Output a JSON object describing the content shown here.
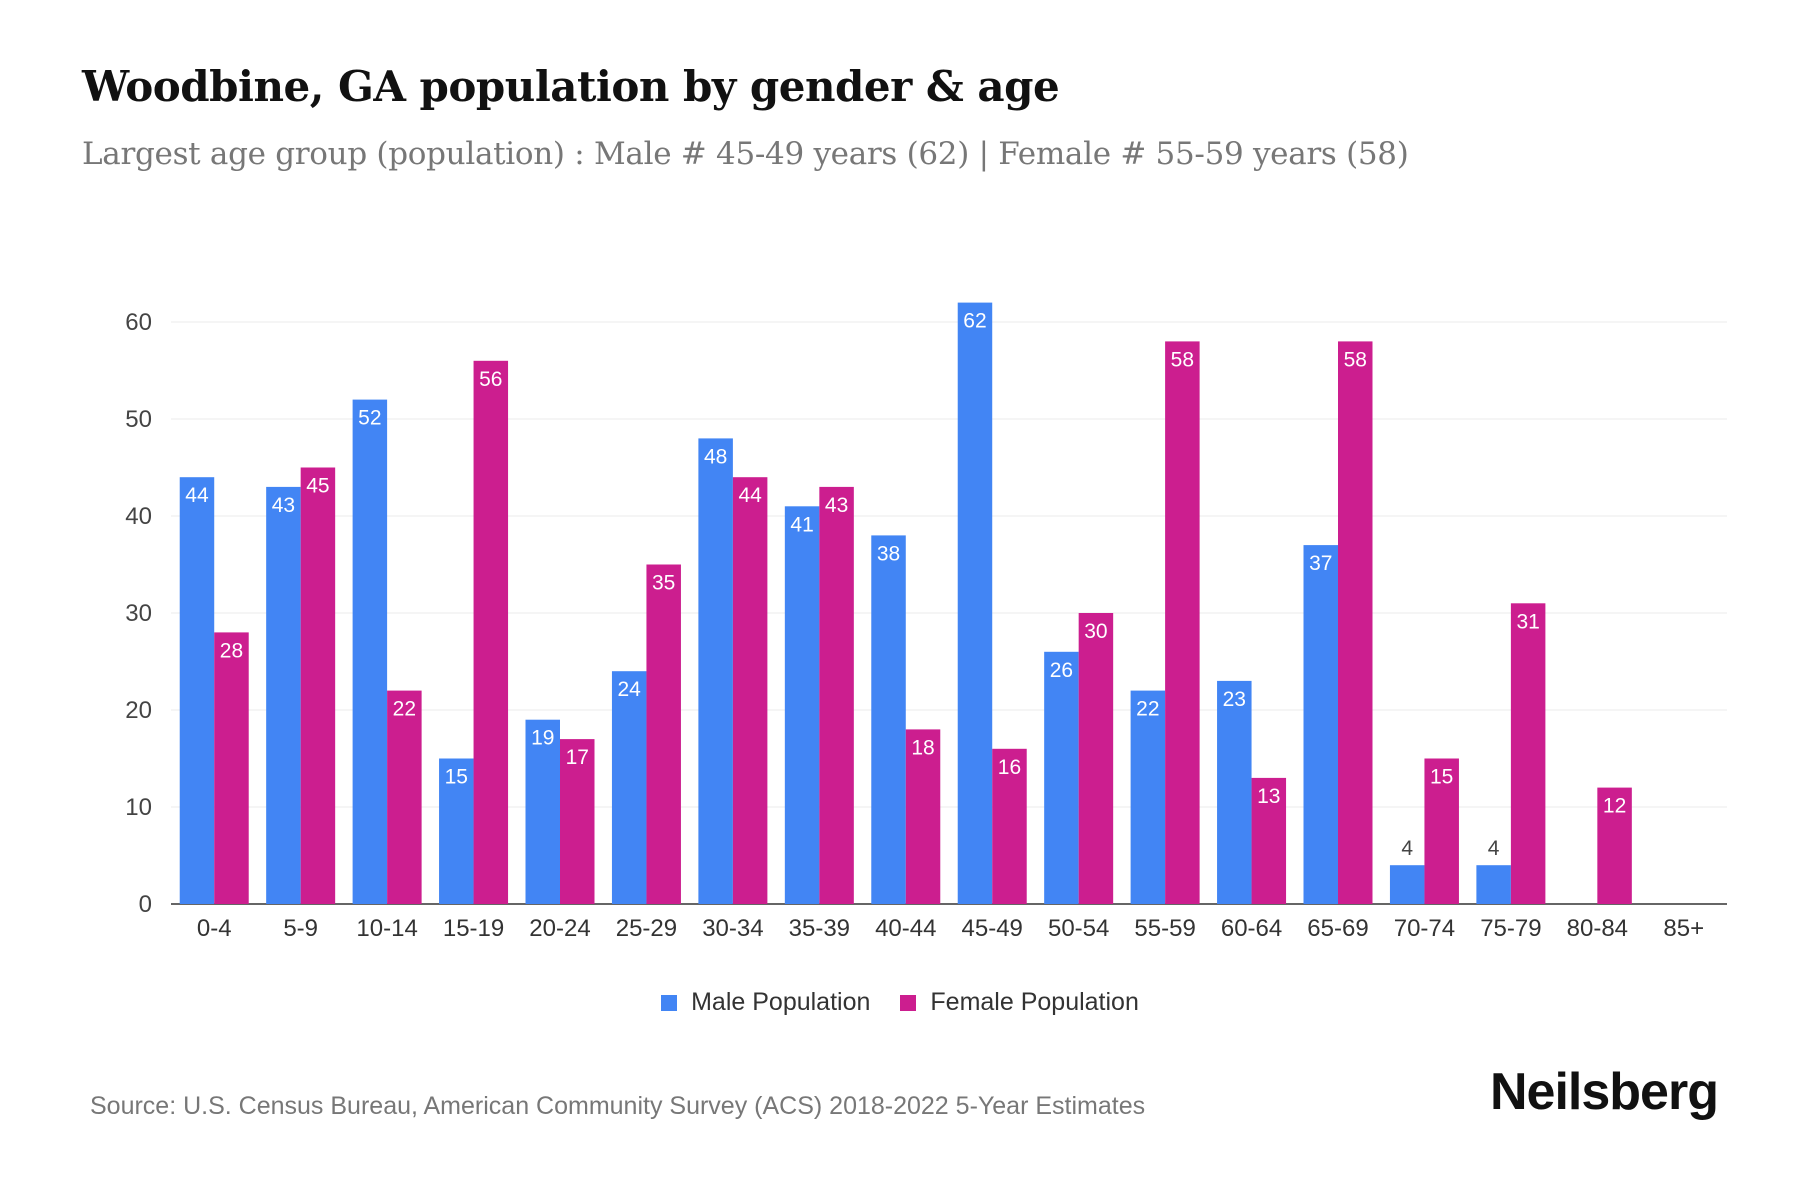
{
  "title": "Woodbine, GA population by gender & age",
  "subtitle": "Largest age group (population) : Male # 45-49 years (62) | Female # 55-59 years (58)",
  "source": "Source: U.S. Census Bureau, American Community Survey (ACS) 2018-2022 5-Year Estimates",
  "logo": "Neilsberg",
  "colors": {
    "male": "#4285F4",
    "female": "#CC1E8F"
  },
  "chart_data": {
    "type": "bar",
    "title": "Woodbine, GA population by gender & age",
    "xlabel": "",
    "ylabel": "",
    "ylim": [
      0,
      62
    ],
    "yticks": [
      0,
      10,
      20,
      30,
      40,
      50,
      60
    ],
    "grid": true,
    "legend_position": "bottom-center",
    "categories": [
      "0-4",
      "5-9",
      "10-14",
      "15-19",
      "20-24",
      "25-29",
      "30-34",
      "35-39",
      "40-44",
      "45-49",
      "50-54",
      "55-59",
      "60-64",
      "65-69",
      "70-74",
      "75-79",
      "80-84",
      "85+"
    ],
    "series": [
      {
        "name": "Male Population",
        "values": [
          44,
          43,
          52,
          15,
          19,
          24,
          48,
          41,
          38,
          62,
          26,
          22,
          23,
          37,
          4,
          4,
          0,
          0
        ]
      },
      {
        "name": "Female Population",
        "values": [
          28,
          45,
          22,
          56,
          17,
          35,
          44,
          43,
          18,
          16,
          30,
          58,
          13,
          58,
          15,
          31,
          12,
          0
        ]
      }
    ]
  }
}
